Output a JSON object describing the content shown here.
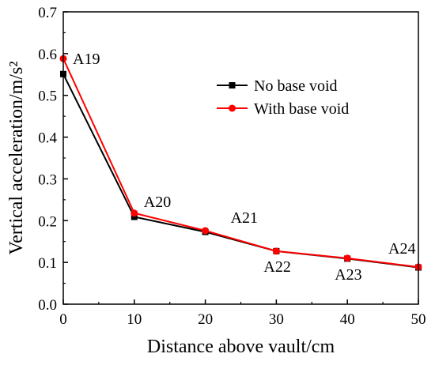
{
  "chart_data": {
    "type": "line",
    "xlabel": "Distance above vault/cm",
    "ylabel": "Vertical acceleration/m/s²",
    "x": [
      0,
      10,
      20,
      30,
      40,
      50
    ],
    "xlim": [
      0,
      50
    ],
    "ylim": [
      0.0,
      0.7
    ],
    "xticks": [
      "0",
      "10",
      "20",
      "30",
      "40",
      "50"
    ],
    "yticks": [
      "0.0",
      "0.1",
      "0.2",
      "0.3",
      "0.4",
      "0.5",
      "0.6",
      "0.7"
    ],
    "series": [
      {
        "name": "No base void",
        "color": "#000000",
        "marker": "square",
        "values": [
          0.551,
          0.209,
          0.173,
          0.127,
          0.109,
          0.088
        ]
      },
      {
        "name": "With base void",
        "color": "#ff0000",
        "marker": "circle",
        "values": [
          0.588,
          0.218,
          0.176,
          0.127,
          0.11,
          0.089
        ]
      }
    ],
    "point_labels": [
      "A19",
      "A20",
      "A21",
      "A22",
      "A23",
      "A24"
    ],
    "legend_position": "upper-right",
    "grid": false
  }
}
